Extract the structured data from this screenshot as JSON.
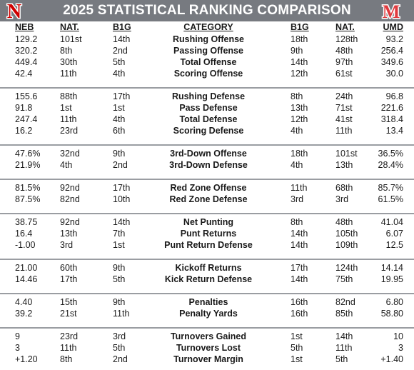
{
  "header": {
    "title": "2025 STATISTICAL RANKING COMPARISON",
    "left_logo_text": "N",
    "right_logo_text": "M",
    "colors": {
      "bar": "#777a80",
      "neb_red": "#d00000",
      "umd_red": "#e03a3e"
    }
  },
  "columns": {
    "neb": "NEB",
    "nat_left": "NAT.",
    "b1g_left": "B1G",
    "category": "CATEGORY",
    "b1g_right": "B1G",
    "nat_right": "NAT.",
    "umd": "UMD"
  },
  "sections": [
    {
      "rows": [
        {
          "neb": "129.2",
          "nat1": "101st",
          "b1g1": "14th",
          "category": "Rushing Offense",
          "b1g2": "18th",
          "nat2": "128th",
          "umd": "93.2"
        },
        {
          "neb": "320.2",
          "nat1": "8th",
          "b1g1": "2nd",
          "category": "Passing Offense",
          "b1g2": "9th",
          "nat2": "48th",
          "umd": "256.4"
        },
        {
          "neb": "449.4",
          "nat1": "30th",
          "b1g1": "5th",
          "category": "Total Offense",
          "b1g2": "14th",
          "nat2": "97th",
          "umd": "349.6"
        },
        {
          "neb": "42.4",
          "nat1": "11th",
          "b1g1": "4th",
          "category": "Scoring Offense",
          "b1g2": "12th",
          "nat2": "61st",
          "umd": "30.0"
        }
      ]
    },
    {
      "rows": [
        {
          "neb": "155.6",
          "nat1": "88th",
          "b1g1": "17th",
          "category": "Rushing Defense",
          "b1g2": "8th",
          "nat2": "24th",
          "umd": "96.8"
        },
        {
          "neb": "91.8",
          "nat1": "1st",
          "b1g1": "1st",
          "category": "Pass Defense",
          "b1g2": "13th",
          "nat2": "71st",
          "umd": "221.6"
        },
        {
          "neb": "247.4",
          "nat1": "11th",
          "b1g1": "4th",
          "category": "Total Defense",
          "b1g2": "12th",
          "nat2": "41st",
          "umd": "318.4"
        },
        {
          "neb": "16.2",
          "nat1": "23rd",
          "b1g1": "6th",
          "category": "Scoring Defense",
          "b1g2": "4th",
          "nat2": "11th",
          "umd": "13.4"
        }
      ]
    },
    {
      "rows": [
        {
          "neb": "47.6%",
          "nat1": "32nd",
          "b1g1": "9th",
          "category": "3rd-Down Offense",
          "b1g2": "18th",
          "nat2": "101st",
          "umd": "36.5%"
        },
        {
          "neb": "21.9%",
          "nat1": "4th",
          "b1g1": "2nd",
          "category": "3rd-Down Defense",
          "b1g2": "4th",
          "nat2": "13th",
          "umd": "28.4%"
        }
      ]
    },
    {
      "rows": [
        {
          "neb": "81.5%",
          "nat1": "92nd",
          "b1g1": "17th",
          "category": "Red Zone Offense",
          "b1g2": "11th",
          "nat2": "68th",
          "umd": "85.7%"
        },
        {
          "neb": "87.5%",
          "nat1": "82nd",
          "b1g1": "10th",
          "category": "Red Zone Defense",
          "b1g2": "3rd",
          "nat2": "3rd",
          "umd": "61.5%"
        }
      ]
    },
    {
      "rows": [
        {
          "neb": "38.75",
          "nat1": "92nd",
          "b1g1": "14th",
          "category": "Net Punting",
          "b1g2": "8th",
          "nat2": "48th",
          "umd": "41.04"
        },
        {
          "neb": "16.4",
          "nat1": "13th",
          "b1g1": "7th",
          "category": "Punt Returns",
          "b1g2": "14th",
          "nat2": "105th",
          "umd": "6.07"
        },
        {
          "neb": "-1.00",
          "nat1": "3rd",
          "b1g1": "1st",
          "category": "Punt Return Defense",
          "b1g2": "14th",
          "nat2": "109th",
          "umd": "12.5"
        }
      ]
    },
    {
      "rows": [
        {
          "neb": "21.00",
          "nat1": "60th",
          "b1g1": "9th",
          "category": "Kickoff Returns",
          "b1g2": "17th",
          "nat2": "124th",
          "umd": "14.14"
        },
        {
          "neb": "14.46",
          "nat1": "17th",
          "b1g1": "5th",
          "category": "Kick Return Defense",
          "b1g2": "14th",
          "nat2": "75th",
          "umd": "19.95"
        }
      ]
    },
    {
      "rows": [
        {
          "neb": "4.40",
          "nat1": "15th",
          "b1g1": "9th",
          "category": "Penalties",
          "b1g2": "16th",
          "nat2": "82nd",
          "umd": "6.80"
        },
        {
          "neb": "39.2",
          "nat1": "21st",
          "b1g1": "11th",
          "category": "Penalty Yards",
          "b1g2": "16th",
          "nat2": "85th",
          "umd": "58.80"
        }
      ]
    },
    {
      "rows": [
        {
          "neb": "9",
          "nat1": "23rd",
          "b1g1": "3rd",
          "category": "Turnovers Gained",
          "b1g2": "1st",
          "nat2": "14th",
          "umd": "10"
        },
        {
          "neb": "3",
          "nat1": "11th",
          "b1g1": "5th",
          "category": "Turnovers Lost",
          "b1g2": "5th",
          "nat2": "11th",
          "umd": "3"
        },
        {
          "neb": "+1.20",
          "nat1": "8th",
          "b1g1": "2nd",
          "category": "Turnover Margin",
          "b1g2": "1st",
          "nat2": "5th",
          "umd": "+1.40"
        }
      ]
    }
  ]
}
